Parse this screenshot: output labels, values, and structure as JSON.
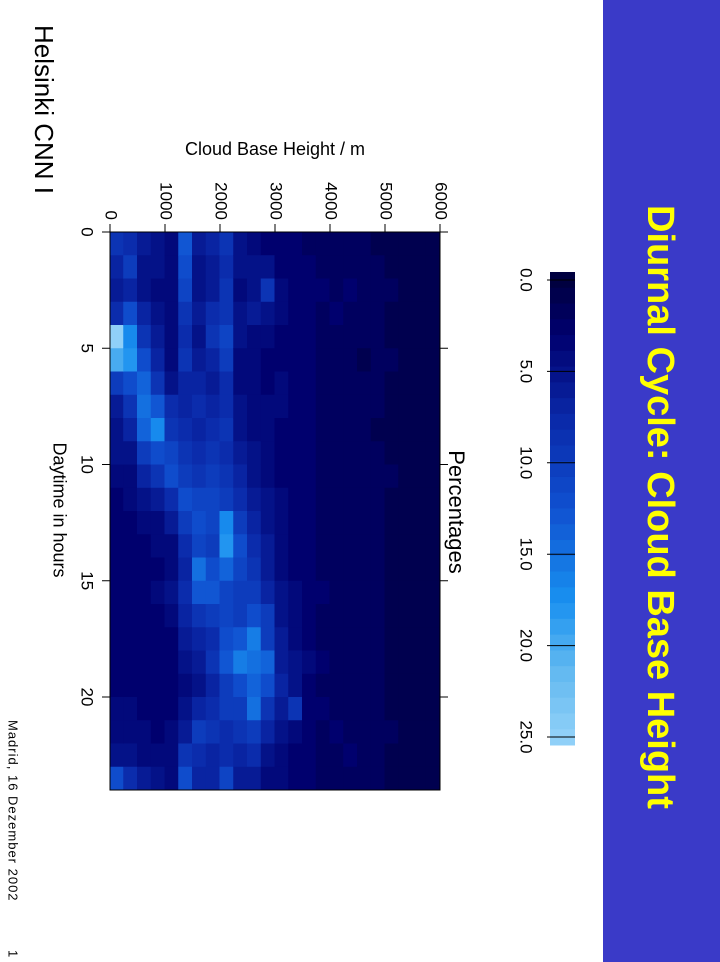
{
  "chart_data": {
    "type": "heatmap",
    "title": "Diurnal Cycle: Cloud Base Height",
    "xlabel": "Daytime in hours",
    "ylabel": "Cloud Base Height / m",
    "colorbar_label": "Percentages",
    "x": [
      0,
      1,
      2,
      3,
      4,
      5,
      6,
      7,
      8,
      9,
      10,
      11,
      12,
      13,
      14,
      15,
      16,
      17,
      18,
      19,
      20,
      21,
      22,
      23,
      24
    ],
    "y": [
      0,
      250,
      500,
      750,
      1000,
      1250,
      1500,
      1750,
      2000,
      2250,
      2500,
      2750,
      3000,
      3250,
      3500,
      3750,
      4000,
      4250,
      4500,
      4750,
      5000,
      5250,
      5500,
      5750,
      6000
    ],
    "z": [
      [
        9,
        7,
        6,
        8,
        25,
        20,
        10,
        6,
        5,
        5,
        4,
        3,
        3,
        3,
        3,
        3,
        3,
        3,
        3,
        3,
        4,
        4,
        5,
        12
      ],
      [
        8,
        10,
        7,
        12,
        17,
        18,
        12,
        9,
        7,
        5,
        4,
        4,
        3,
        3,
        3,
        3,
        3,
        3,
        3,
        3,
        4,
        4,
        5,
        8
      ],
      [
        6,
        5,
        5,
        7,
        9,
        12,
        14,
        15,
        14,
        10,
        7,
        5,
        4,
        3,
        3,
        3,
        3,
        3,
        3,
        3,
        3,
        4,
        4,
        6
      ],
      [
        5,
        5,
        4,
        5,
        6,
        7,
        9,
        13,
        17,
        12,
        9,
        6,
        4,
        4,
        3,
        4,
        3,
        3,
        3,
        3,
        3,
        3,
        4,
        5
      ],
      [
        4,
        4,
        4,
        4,
        4,
        4,
        5,
        8,
        9,
        11,
        12,
        8,
        6,
        4,
        4,
        5,
        4,
        3,
        3,
        3,
        3,
        4,
        4,
        4
      ],
      [
        13,
        12,
        11,
        9,
        8,
        9,
        7,
        7,
        8,
        9,
        10,
        12,
        10,
        8,
        7,
        8,
        7,
        6,
        5,
        4,
        5,
        6,
        9,
        12
      ],
      [
        6,
        5,
        5,
        6,
        5,
        6,
        7,
        8,
        7,
        8,
        9,
        11,
        12,
        11,
        15,
        13,
        9,
        7,
        6,
        5,
        7,
        10,
        8,
        7
      ],
      [
        7,
        6,
        6,
        8,
        9,
        7,
        6,
        7,
        8,
        9,
        10,
        11,
        11,
        10,
        12,
        13,
        10,
        8,
        9,
        7,
        8,
        9,
        7,
        7
      ],
      [
        9,
        8,
        9,
        9,
        11,
        10,
        8,
        8,
        9,
        8,
        9,
        10,
        17,
        18,
        14,
        11,
        11,
        12,
        13,
        10,
        10,
        8,
        8,
        11
      ],
      [
        5,
        5,
        4,
        5,
        5,
        4,
        4,
        5,
        5,
        6,
        7,
        8,
        10,
        12,
        11,
        10,
        10,
        13,
        16,
        12,
        10,
        9,
        7,
        6
      ],
      [
        4,
        5,
        5,
        6,
        4,
        4,
        4,
        4,
        4,
        5,
        5,
        6,
        7,
        8,
        9,
        10,
        12,
        16,
        15,
        14,
        15,
        10,
        8,
        6
      ],
      [
        3,
        5,
        9,
        5,
        4,
        3,
        3,
        4,
        4,
        4,
        4,
        5,
        5,
        6,
        6,
        7,
        10,
        10,
        14,
        12,
        9,
        7,
        5,
        4
      ],
      [
        3,
        3,
        4,
        4,
        3,
        3,
        4,
        4,
        3,
        3,
        3,
        4,
        4,
        4,
        4,
        5,
        5,
        6,
        6,
        7,
        6,
        5,
        4,
        4
      ],
      [
        3,
        3,
        3,
        3,
        3,
        3,
        3,
        3,
        3,
        3,
        3,
        3,
        3,
        3,
        3,
        4,
        4,
        4,
        5,
        5,
        9,
        4,
        3,
        3
      ],
      [
        2,
        3,
        3,
        3,
        3,
        3,
        3,
        3,
        3,
        3,
        3,
        3,
        3,
        3,
        3,
        3,
        3,
        3,
        4,
        3,
        3,
        3,
        3,
        3
      ],
      [
        2,
        2,
        3,
        2,
        2,
        2,
        2,
        2,
        2,
        2,
        2,
        2,
        2,
        2,
        2,
        3,
        2,
        2,
        3,
        2,
        3,
        2,
        2,
        2
      ],
      [
        2,
        2,
        2,
        3,
        2,
        2,
        2,
        2,
        2,
        2,
        2,
        2,
        2,
        2,
        2,
        2,
        2,
        2,
        2,
        2,
        2,
        3,
        2,
        2
      ],
      [
        2,
        2,
        3,
        2,
        2,
        2,
        2,
        2,
        2,
        2,
        2,
        2,
        2,
        2,
        2,
        2,
        2,
        2,
        2,
        2,
        2,
        2,
        3,
        2
      ],
      [
        2,
        2,
        2,
        2,
        2,
        1,
        2,
        2,
        2,
        2,
        2,
        2,
        2,
        2,
        2,
        2,
        2,
        2,
        2,
        2,
        2,
        2,
        2,
        2
      ],
      [
        1,
        2,
        2,
        2,
        2,
        2,
        2,
        2,
        1,
        2,
        2,
        2,
        2,
        2,
        2,
        2,
        2,
        2,
        2,
        2,
        2,
        2,
        2,
        2
      ],
      [
        1,
        1,
        2,
        1,
        1,
        2,
        1,
        1,
        1,
        1,
        2,
        1,
        1,
        1,
        1,
        1,
        1,
        1,
        1,
        1,
        1,
        2,
        1,
        1
      ],
      [
        1,
        1,
        1,
        1,
        1,
        1,
        1,
        1,
        1,
        1,
        1,
        1,
        1,
        1,
        1,
        1,
        1,
        1,
        1,
        1,
        1,
        1,
        1,
        1
      ],
      [
        1,
        1,
        1,
        1,
        1,
        1,
        1,
        1,
        1,
        1,
        1,
        1,
        1,
        1,
        1,
        1,
        1,
        1,
        1,
        1,
        1,
        1,
        1,
        1
      ],
      [
        1,
        1,
        1,
        1,
        1,
        1,
        1,
        1,
        1,
        1,
        1,
        1,
        1,
        1,
        1,
        1,
        1,
        1,
        1,
        1,
        1,
        1,
        1,
        1
      ]
    ],
    "xlim": [
      0,
      24
    ],
    "ylim": [
      0,
      6000
    ],
    "xticks": [
      0,
      5,
      10,
      15,
      20
    ],
    "yticks": [
      0,
      1000,
      2000,
      3000,
      4000,
      5000,
      6000
    ],
    "colorbar_lim": [
      0,
      25
    ],
    "colorbar_ticks": [
      {
        "value": 0,
        "label": "0.0"
      },
      {
        "value": 5,
        "label": "5.0"
      },
      {
        "value": 10,
        "label": "10.0"
      },
      {
        "value": 15,
        "label": "15.0"
      },
      {
        "value": 20,
        "label": "20.0"
      },
      {
        "value": 25,
        "label": "25.0"
      }
    ]
  },
  "footer": {
    "source": "Helsinki CNN I",
    "venue": "Madrid, 16 Dezember 2002",
    "page": "1"
  }
}
